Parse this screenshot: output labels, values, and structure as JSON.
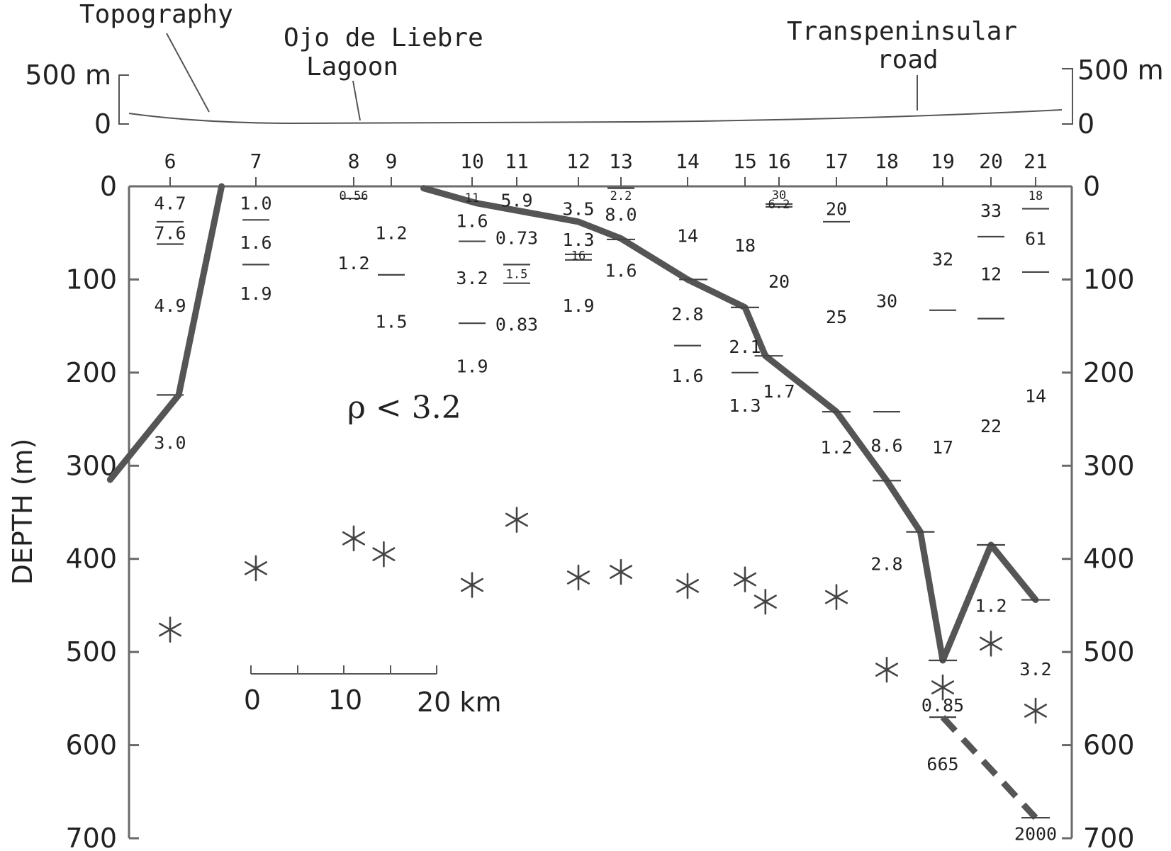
{
  "topography": {
    "title": "Topography",
    "label_lagoon_1": "Ojo de Liebre",
    "label_lagoon_2": "Lagoon",
    "label_road_1": "Transpeninsular",
    "label_road_2": "road",
    "left_top": "500 m",
    "left_zero": "0",
    "right_top": "500 m",
    "right_zero": "0"
  },
  "axis": {
    "ylabel": "DEPTH (m)",
    "yticks": [
      0,
      100,
      200,
      300,
      400,
      500,
      600,
      700
    ],
    "ylim": [
      0,
      700
    ]
  },
  "stations": [
    "6",
    "7",
    "8",
    "9",
    "10",
    "11",
    "12",
    "13",
    "14",
    "15",
    "16",
    "17",
    "18",
    "19",
    "20",
    "21"
  ],
  "scale_bar": {
    "labels": [
      "0",
      "10",
      "20 km"
    ]
  },
  "density_note": "ρ < 3.2",
  "resistivity_labels": [
    {
      "station": "6",
      "depth": 18,
      "text": "4.7",
      "size": "res"
    },
    {
      "station": "6",
      "depth": 50,
      "text": "7.6",
      "size": "res"
    },
    {
      "station": "6",
      "depth": 128,
      "text": "4.9",
      "size": "res"
    },
    {
      "station": "6",
      "depth": 275,
      "text": "3.0",
      "size": "res"
    },
    {
      "station": "7",
      "depth": 18,
      "text": "1.0",
      "size": "res"
    },
    {
      "station": "7",
      "depth": 60,
      "text": "1.6",
      "size": "res"
    },
    {
      "station": "7",
      "depth": 115,
      "text": "1.9",
      "size": "res"
    },
    {
      "station": "8",
      "depth": 10,
      "text": "0.56",
      "size": "sm"
    },
    {
      "station": "8",
      "depth": 82,
      "text": "1.2",
      "size": "res"
    },
    {
      "station": "9",
      "depth": 50,
      "text": "1.2",
      "size": "res"
    },
    {
      "station": "9",
      "depth": 145,
      "text": "1.5",
      "size": "res"
    },
    {
      "station": "10",
      "depth": 12,
      "text": "11",
      "size": "sm"
    },
    {
      "station": "10",
      "depth": 37,
      "text": "1.6",
      "size": "res"
    },
    {
      "station": "10",
      "depth": 98,
      "text": "3.2",
      "size": "res"
    },
    {
      "station": "10",
      "depth": 193,
      "text": "1.9",
      "size": "res"
    },
    {
      "station": "11",
      "depth": 15,
      "text": "5.9",
      "size": "res"
    },
    {
      "station": "11",
      "depth": 55,
      "text": "0.73",
      "size": "res"
    },
    {
      "station": "11",
      "depth": 94,
      "text": "1.5",
      "size": "sm"
    },
    {
      "station": "11",
      "depth": 148,
      "text": "0.83",
      "size": "res"
    },
    {
      "station": "12",
      "depth": 24,
      "text": "3.5",
      "size": "res"
    },
    {
      "station": "12",
      "depth": 57,
      "text": "1.3",
      "size": "res"
    },
    {
      "station": "12",
      "depth": 74,
      "text": "16",
      "size": "sm"
    },
    {
      "station": "12",
      "depth": 128,
      "text": "1.9",
      "size": "res"
    },
    {
      "station": "13",
      "depth": 10,
      "text": "2.2",
      "size": "sm"
    },
    {
      "station": "13",
      "depth": 30,
      "text": "8.0",
      "size": "res"
    },
    {
      "station": "13",
      "depth": 90,
      "text": "1.6",
      "size": "res"
    },
    {
      "station": "14",
      "depth": 53,
      "text": "14",
      "size": "res"
    },
    {
      "station": "14",
      "depth": 137,
      "text": "2.8",
      "size": "res"
    },
    {
      "station": "14",
      "depth": 203,
      "text": "1.6",
      "size": "res"
    },
    {
      "station": "15",
      "depth": 63,
      "text": "18",
      "size": "res"
    },
    {
      "station": "15",
      "depth": 172,
      "text": "2.1",
      "size": "res"
    },
    {
      "station": "15",
      "depth": 235,
      "text": "1.3",
      "size": "res"
    },
    {
      "station": "16",
      "depth": 9,
      "text": "30",
      "size": "sm"
    },
    {
      "station": "16",
      "depth": 19,
      "text": "6.2",
      "size": "sm"
    },
    {
      "station": "16",
      "depth": 102,
      "text": "20",
      "size": "res"
    },
    {
      "station": "16",
      "depth": 220,
      "text": "1.7",
      "size": "res"
    },
    {
      "station": "17",
      "depth": 24,
      "text": "20",
      "size": "res"
    },
    {
      "station": "17",
      "depth": 140,
      "text": "25",
      "size": "res"
    },
    {
      "station": "17",
      "depth": 280,
      "text": "1.2",
      "size": "res"
    },
    {
      "station": "18",
      "depth": 123,
      "text": "30",
      "size": "res"
    },
    {
      "station": "18",
      "depth": 278,
      "text": "8.6",
      "size": "res"
    },
    {
      "station": "18",
      "depth": 405,
      "text": "2.8",
      "size": "res"
    },
    {
      "station": "19",
      "depth": 78,
      "text": "32",
      "size": "res"
    },
    {
      "station": "19",
      "depth": 280,
      "text": "17",
      "size": "res"
    },
    {
      "station": "19",
      "depth": 557,
      "text": "0.85",
      "size": "res"
    },
    {
      "station": "19",
      "depth": 620,
      "text": "665",
      "size": "res"
    },
    {
      "station": "20",
      "depth": 26,
      "text": "33",
      "size": "res"
    },
    {
      "station": "20",
      "depth": 94,
      "text": "12",
      "size": "res"
    },
    {
      "station": "20",
      "depth": 257,
      "text": "22",
      "size": "res"
    },
    {
      "station": "20",
      "depth": 450,
      "text": "1.2",
      "size": "res"
    },
    {
      "station": "21",
      "depth": 10,
      "text": "18",
      "size": "sm"
    },
    {
      "station": "21",
      "depth": 56,
      "text": "61",
      "size": "res"
    },
    {
      "station": "21",
      "depth": 225,
      "text": "14",
      "size": "res"
    },
    {
      "station": "21",
      "depth": 518,
      "text": "3.2",
      "size": "res"
    },
    {
      "station": "21",
      "depth": 695,
      "text": "2000",
      "size": "res"
    }
  ],
  "layer_boundaries": [
    {
      "station": "6",
      "depth": 38
    },
    {
      "station": "6",
      "depth": 62
    },
    {
      "station": "6",
      "depth": 224
    },
    {
      "station": "7",
      "depth": 36
    },
    {
      "station": "7",
      "depth": 84
    },
    {
      "station": "8",
      "depth": 13
    },
    {
      "station": "9",
      "depth": 95
    },
    {
      "station": "10",
      "depth": 59
    },
    {
      "station": "10",
      "depth": 147
    },
    {
      "station": "11",
      "depth": 84
    },
    {
      "station": "11",
      "depth": 104
    },
    {
      "station": "12",
      "depth": 73
    },
    {
      "station": "12",
      "depth": 79
    },
    {
      "station": "13",
      "depth": 2
    },
    {
      "station": "14",
      "depth": 171
    },
    {
      "station": "15",
      "depth": 200
    },
    {
      "station": "16",
      "depth": 19
    },
    {
      "station": "16",
      "depth": 22
    },
    {
      "station": "17",
      "depth": 38
    },
    {
      "station": "18",
      "depth": 242
    },
    {
      "station": "19",
      "depth": 133
    },
    {
      "station": "19",
      "depth": 570
    },
    {
      "station": "20",
      "depth": 54
    },
    {
      "station": "20",
      "depth": 142
    },
    {
      "station": "21",
      "depth": 24
    },
    {
      "station": "21",
      "depth": 92
    }
  ],
  "basement_profile": [
    {
      "x": 6.6,
      "depth": 0
    },
    {
      "x": 6.1,
      "depth": 224
    },
    {
      "x": 5.3,
      "depth": 315
    }
  ],
  "main_profile": [
    {
      "x": 9.4,
      "depth": 2
    },
    {
      "x": 10.1,
      "depth": 18
    },
    {
      "x": 12.0,
      "depth": 38
    },
    {
      "x": 13.0,
      "depth": 56
    },
    {
      "x": 14.0,
      "depth": 100
    },
    {
      "x": 15.0,
      "depth": 130
    },
    {
      "x": 15.6,
      "depth": 182
    },
    {
      "x": 17.0,
      "depth": 242
    },
    {
      "x": 18.0,
      "depth": 316
    },
    {
      "x": 18.6,
      "depth": 371
    },
    {
      "x": 19.0,
      "depth": 509
    },
    {
      "x": 20.0,
      "depth": 385
    },
    {
      "x": 21.0,
      "depth": 444
    }
  ],
  "main_profile_dashed": [
    {
      "x": 19.0,
      "depth": 570
    },
    {
      "x": 21.0,
      "depth": 678
    }
  ],
  "profile_ticks": [
    {
      "x": 13.0,
      "depth": 57
    },
    {
      "x": 14.1,
      "depth": 100
    },
    {
      "x": 15.0,
      "depth": 130
    },
    {
      "x": 15.7,
      "depth": 182
    },
    {
      "x": 17.0,
      "depth": 242
    },
    {
      "x": 18.0,
      "depth": 316
    },
    {
      "x": 18.6,
      "depth": 371
    },
    {
      "x": 19.0,
      "depth": 509
    },
    {
      "x": 20.0,
      "depth": 385
    },
    {
      "x": 21.0,
      "depth": 444
    },
    {
      "x": 21.0,
      "depth": 678
    }
  ],
  "stars": [
    {
      "x": 6.0,
      "depth": 476
    },
    {
      "x": 7.0,
      "depth": 410
    },
    {
      "x": 8.0,
      "depth": 378
    },
    {
      "x": 8.8,
      "depth": 395
    },
    {
      "x": 10.0,
      "depth": 428
    },
    {
      "x": 11.0,
      "depth": 358
    },
    {
      "x": 12.0,
      "depth": 420
    },
    {
      "x": 13.0,
      "depth": 414
    },
    {
      "x": 14.0,
      "depth": 429
    },
    {
      "x": 15.0,
      "depth": 422
    },
    {
      "x": 15.6,
      "depth": 446
    },
    {
      "x": 17.0,
      "depth": 441
    },
    {
      "x": 18.0,
      "depth": 519
    },
    {
      "x": 19.0,
      "depth": 538
    },
    {
      "x": 20.0,
      "depth": 491
    },
    {
      "x": 21.0,
      "depth": 563
    }
  ],
  "colors": {
    "profile": "#555555",
    "axis": "#6a6a6a",
    "text": "#222222",
    "background": "#ffffff"
  }
}
